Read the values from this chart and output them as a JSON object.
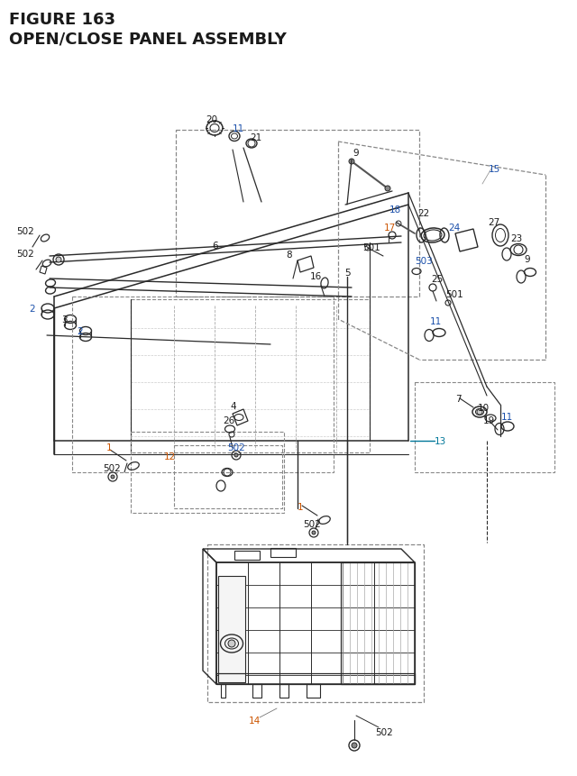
{
  "title_line1": "FIGURE 163",
  "title_line2": "OPEN/CLOSE PANEL ASSEMBLY",
  "bg_color": "#ffffff",
  "lc": "#2a2a2a",
  "bk": "#1a1a1a",
  "bl": "#1a4faa",
  "or": "#cc5500",
  "tl": "#007799",
  "fs": 7.5
}
